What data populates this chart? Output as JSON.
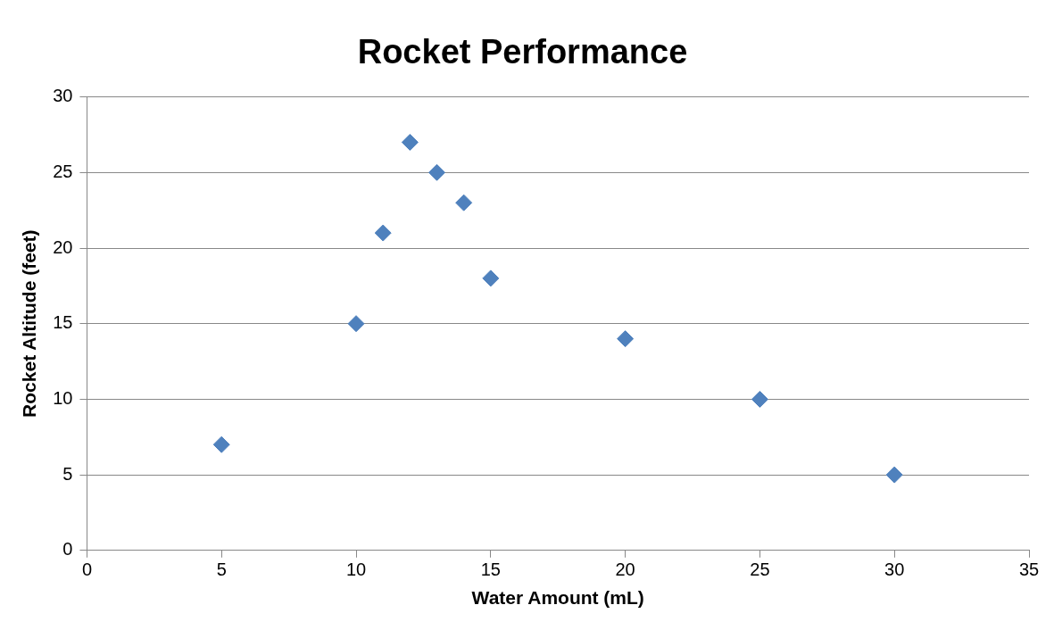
{
  "chart_data": {
    "type": "scatter",
    "title": "Rocket Performance",
    "xlabel": "Water Amount (mL)",
    "ylabel": "Rocket Altitude (feet)",
    "x": [
      5,
      10,
      11,
      12,
      13,
      14,
      15,
      20,
      25,
      30
    ],
    "series": [
      {
        "color": "#4f81bd",
        "values": [
          7,
          15,
          21,
          27,
          25,
          23,
          18,
          14,
          10,
          5
        ]
      }
    ],
    "xlim": [
      0,
      35
    ],
    "xticks": [
      0,
      5,
      10,
      15,
      20,
      25,
      30,
      35
    ],
    "ylim": [
      0,
      30
    ],
    "yticks": [
      0,
      5,
      10,
      15,
      20,
      25,
      30
    ],
    "grid": "y",
    "marker": "diamond"
  }
}
